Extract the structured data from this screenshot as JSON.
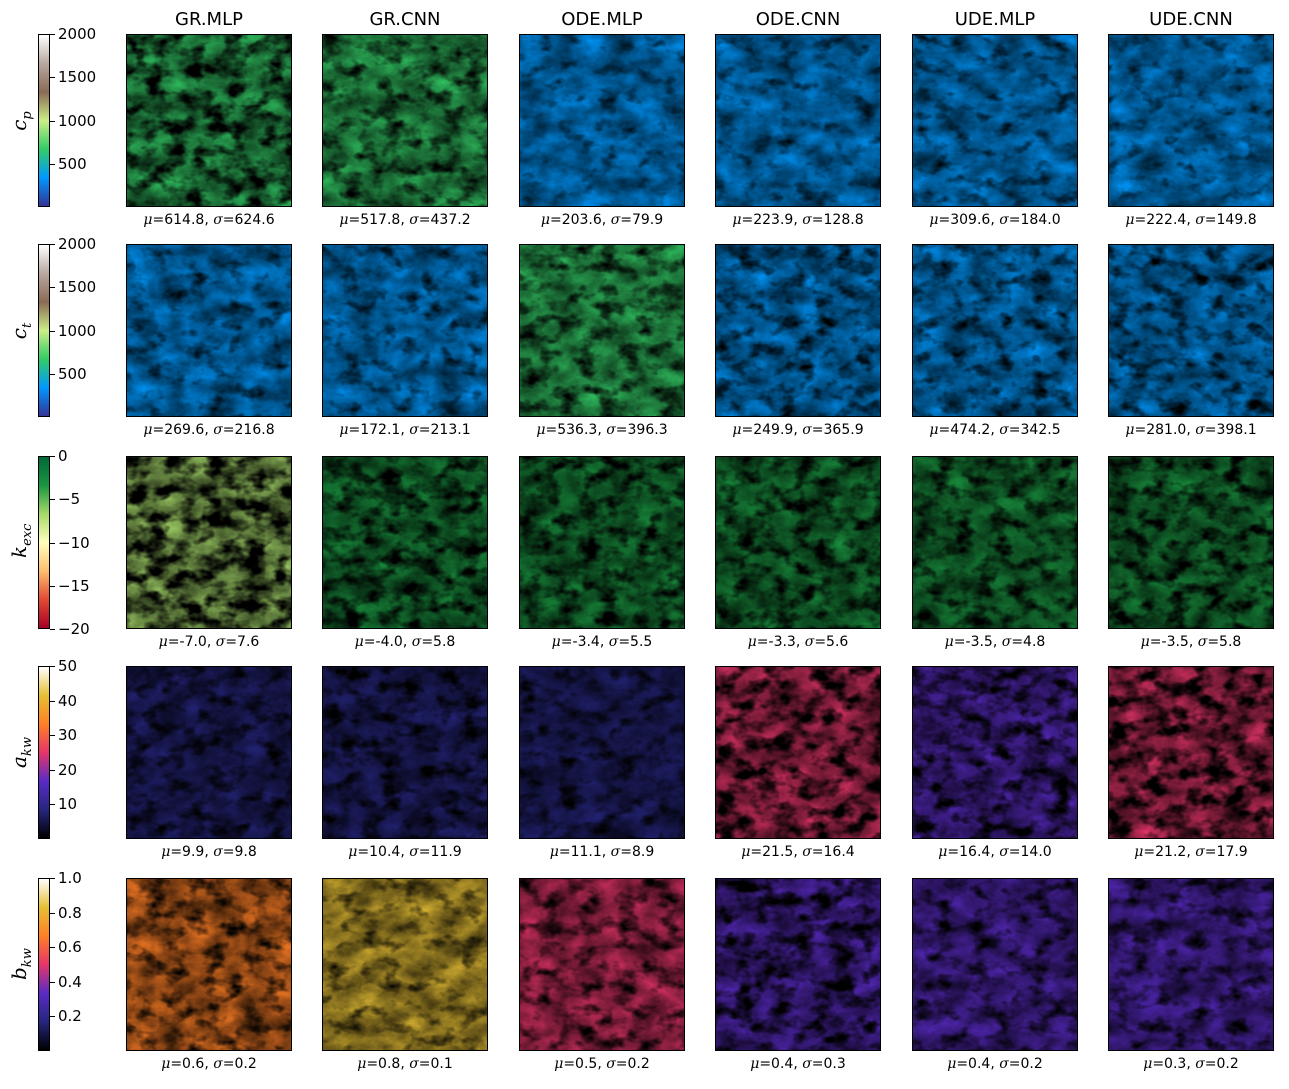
{
  "chart_data": {
    "type": "heatmap",
    "columns": [
      "GR.MLP",
      "GR.CNN",
      "ODE.MLP",
      "ODE.CNN",
      "UDE.MLP",
      "UDE.CNN"
    ],
    "rows": [
      {
        "label_main": "c",
        "label_sub": "p",
        "colormap": "terrain",
        "colors": [
          "#333399",
          "#0099ff",
          "#33cc66",
          "#ccee88",
          "#8a6a55",
          "#b8a8a0",
          "#ffffff"
        ],
        "range": [
          0,
          2000
        ],
        "ticks": [
          "2000",
          "1500",
          "1000",
          "500"
        ],
        "tick_values": [
          2000,
          1500,
          1000,
          500
        ],
        "stats": [
          {
            "mu": "614.8",
            "sigma": "624.6"
          },
          {
            "mu": "517.8",
            "sigma": "437.2"
          },
          {
            "mu": "203.6",
            "sigma": "79.9"
          },
          {
            "mu": "223.9",
            "sigma": "128.8"
          },
          {
            "mu": "309.6",
            "sigma": "184.0"
          },
          {
            "mu": "222.4",
            "sigma": "149.8"
          }
        ]
      },
      {
        "label_main": "c",
        "label_sub": "t",
        "colormap": "terrain",
        "colors": [
          "#333399",
          "#0099ff",
          "#33cc66",
          "#ccee88",
          "#8a6a55",
          "#b8a8a0",
          "#ffffff"
        ],
        "range": [
          0,
          2000
        ],
        "ticks": [
          "2000",
          "1500",
          "1000",
          "500"
        ],
        "tick_values": [
          2000,
          1500,
          1000,
          500
        ],
        "stats": [
          {
            "mu": "269.6",
            "sigma": "216.8"
          },
          {
            "mu": "172.1",
            "sigma": "213.1"
          },
          {
            "mu": "536.3",
            "sigma": "396.3"
          },
          {
            "mu": "249.9",
            "sigma": "365.9"
          },
          {
            "mu": "474.2",
            "sigma": "342.5"
          },
          {
            "mu": "281.0",
            "sigma": "398.1"
          }
        ]
      },
      {
        "label_main": "k",
        "label_sub": "exc",
        "colormap": "RdYlGn",
        "colors": [
          "#a50026",
          "#e34a33",
          "#fdbe70",
          "#ffffbf",
          "#a6d96a",
          "#1a9641",
          "#006837"
        ],
        "range": [
          -20,
          0
        ],
        "ticks": [
          "0",
          "−5",
          "−10",
          "−15",
          "−20"
        ],
        "tick_values": [
          0,
          -5,
          -10,
          -15,
          -20
        ],
        "stats": [
          {
            "mu": "-7.0",
            "sigma": "7.6"
          },
          {
            "mu": "-4.0",
            "sigma": "5.8"
          },
          {
            "mu": "-3.4",
            "sigma": "5.5"
          },
          {
            "mu": "-3.3",
            "sigma": "5.6"
          },
          {
            "mu": "-3.5",
            "sigma": "4.8"
          },
          {
            "mu": "-3.5",
            "sigma": "5.8"
          }
        ]
      },
      {
        "label_main": "a",
        "label_sub": "kw",
        "colormap": "CMRmap",
        "colors": [
          "#000000",
          "#26267f",
          "#5a2bc6",
          "#e6356a",
          "#ff7f26",
          "#e6bf35",
          "#ffffff"
        ],
        "range": [
          0,
          50
        ],
        "ticks": [
          "50",
          "40",
          "30",
          "20",
          "10"
        ],
        "tick_values": [
          50,
          40,
          30,
          20,
          10
        ],
        "stats": [
          {
            "mu": "9.9",
            "sigma": "9.8"
          },
          {
            "mu": "10.4",
            "sigma": "11.9"
          },
          {
            "mu": "11.1",
            "sigma": "8.9"
          },
          {
            "mu": "21.5",
            "sigma": "16.4"
          },
          {
            "mu": "16.4",
            "sigma": "14.0"
          },
          {
            "mu": "21.2",
            "sigma": "17.9"
          }
        ]
      },
      {
        "label_main": "b",
        "label_sub": "kw",
        "colormap": "CMRmap",
        "colors": [
          "#000000",
          "#26267f",
          "#5a2bc6",
          "#e6356a",
          "#ff7f26",
          "#e6bf35",
          "#ffffff"
        ],
        "range": [
          0,
          1
        ],
        "ticks": [
          "1.0",
          "0.8",
          "0.6",
          "0.4",
          "0.2"
        ],
        "tick_values": [
          1.0,
          0.8,
          0.6,
          0.4,
          0.2
        ],
        "stats": [
          {
            "mu": "0.6",
            "sigma": "0.2"
          },
          {
            "mu": "0.8",
            "sigma": "0.1"
          },
          {
            "mu": "0.5",
            "sigma": "0.2"
          },
          {
            "mu": "0.4",
            "sigma": "0.3"
          },
          {
            "mu": "0.4",
            "sigma": "0.2"
          },
          {
            "mu": "0.3",
            "sigma": "0.2"
          }
        ]
      }
    ]
  }
}
